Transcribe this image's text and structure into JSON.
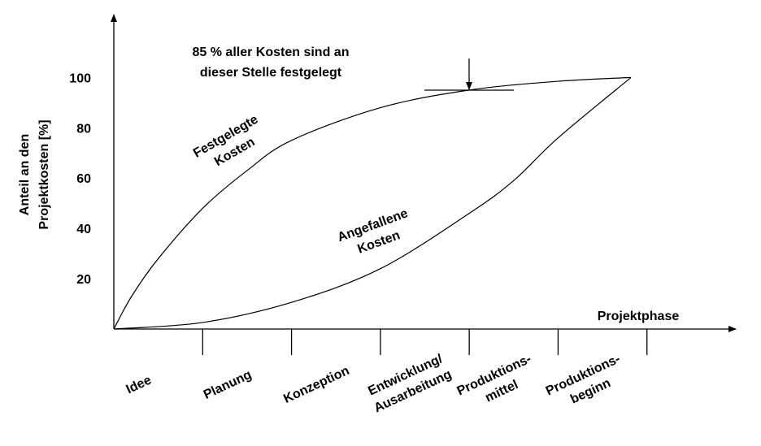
{
  "chart_data": {
    "type": "line",
    "annotation": [
      "85 % aller Kosten sind an",
      "dieser Stelle festgelegt"
    ],
    "ylabel": [
      "Anteil an den",
      "Projektkosten [%]"
    ],
    "xlabel": "Projektphase",
    "categories": [
      [
        "Idee"
      ],
      [
        "Planung"
      ],
      [
        "Konzeption"
      ],
      [
        "Entwicklung/",
        "Ausarbeitung"
      ],
      [
        "Produktions-",
        "mittel"
      ],
      [
        "Produktions-",
        "beginn"
      ]
    ],
    "xlim": [
      0,
      7
    ],
    "ylim": [
      0,
      125
    ],
    "yticks": [
      20,
      40,
      60,
      80,
      100
    ],
    "series": [
      {
        "name": [
          "Festgelegte",
          "Kosten"
        ],
        "color": "#000000",
        "x": [
          0,
          0.2,
          0.5,
          1,
          1.5,
          2,
          3,
          4,
          5,
          5.82
        ],
        "values": [
          0,
          13,
          28,
          48,
          63,
          75,
          88,
          95,
          98.5,
          100
        ]
      },
      {
        "name": [
          "Angefallene",
          "Kosten"
        ],
        "color": "#000000",
        "x": [
          0,
          1,
          2,
          3,
          4,
          4.5,
          5,
          5.82
        ],
        "values": [
          0,
          2.6,
          10.6,
          24,
          46,
          59,
          76,
          100
        ]
      }
    ]
  }
}
